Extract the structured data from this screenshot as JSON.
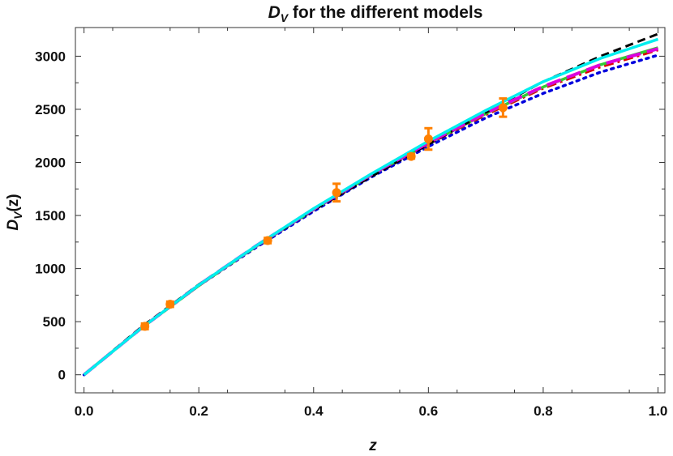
{
  "chart_data": {
    "type": "line",
    "title_main": "D",
    "title_sub": "V",
    "title_rest": " for the different models",
    "xlabel": "z",
    "ylabel_main": "D",
    "ylabel_sub": "V",
    "ylabel_rest": "(z)",
    "xlim": [
      -0.015,
      1.012
    ],
    "ylim": [
      -170,
      3270
    ],
    "x_ticks": [
      0.0,
      0.2,
      0.4,
      0.6,
      0.8,
      1.0
    ],
    "x_tick_labels": [
      "0.0",
      "0.2",
      "0.4",
      "0.6",
      "0.8",
      "1.0"
    ],
    "y_ticks": [
      0,
      500,
      1000,
      1500,
      2000,
      2500,
      3000
    ],
    "y_tick_labels": [
      "0",
      "500",
      "1000",
      "1500",
      "2000",
      "2500",
      "3000"
    ],
    "grid": false,
    "legend": "none",
    "series": [
      {
        "color": "#0000dd",
        "style": "dotted",
        "x": [
          0.0,
          0.1,
          0.2,
          0.3,
          0.4,
          0.5,
          0.6,
          0.7,
          0.8,
          0.9,
          1.0
        ],
        "y": [
          0,
          440,
          840,
          1200,
          1540,
          1860,
          2150,
          2420,
          2650,
          2850,
          3010
        ]
      },
      {
        "color": "#dd0000",
        "style": "dashdot",
        "x": [
          0.0,
          0.1,
          0.2,
          0.3,
          0.4,
          0.5,
          0.6,
          0.7,
          0.8,
          0.9,
          1.0
        ],
        "y": [
          0,
          440,
          840,
          1210,
          1555,
          1880,
          2175,
          2450,
          2700,
          2900,
          3060
        ]
      },
      {
        "color": "#33cc33",
        "style": "solid",
        "x": [
          0.0,
          0.1,
          0.2,
          0.3,
          0.4,
          0.5,
          0.6,
          0.7,
          0.8,
          0.9,
          1.0
        ],
        "y": [
          0,
          440,
          840,
          1210,
          1555,
          1880,
          2180,
          2460,
          2710,
          2920,
          3080
        ]
      },
      {
        "color": "#000000",
        "style": "dashed",
        "x": [
          0.0,
          0.1,
          0.2,
          0.3,
          0.4,
          0.5,
          0.6,
          0.7,
          0.8,
          0.9,
          1.0
        ],
        "y": [
          0,
          450,
          850,
          1215,
          1550,
          1865,
          2170,
          2470,
          2760,
          3000,
          3210
        ]
      },
      {
        "color": "#dd00dd",
        "style": "longdash",
        "x": [
          0.0,
          0.1,
          0.2,
          0.3,
          0.4,
          0.5,
          0.6,
          0.7,
          0.8,
          0.9,
          1.0
        ],
        "y": [
          0,
          440,
          845,
          1215,
          1560,
          1885,
          2185,
          2465,
          2715,
          2920,
          3070
        ]
      },
      {
        "color": "#00eeee",
        "style": "solid",
        "x": [
          0.0,
          0.1,
          0.2,
          0.3,
          0.4,
          0.5,
          0.6,
          0.7,
          0.8,
          0.9,
          1.0
        ],
        "y": [
          0,
          440,
          845,
          1215,
          1565,
          1890,
          2200,
          2490,
          2760,
          2980,
          3160
        ]
      }
    ],
    "data_points": {
      "color": "#ff8000",
      "x": [
        0.106,
        0.15,
        0.32,
        0.44,
        0.57,
        0.6,
        0.73
      ],
      "y": [
        456,
        664,
        1264,
        1716,
        2056,
        2221,
        2516
      ],
      "err": [
        27,
        25,
        25,
        83,
        20,
        101,
        86
      ]
    }
  }
}
